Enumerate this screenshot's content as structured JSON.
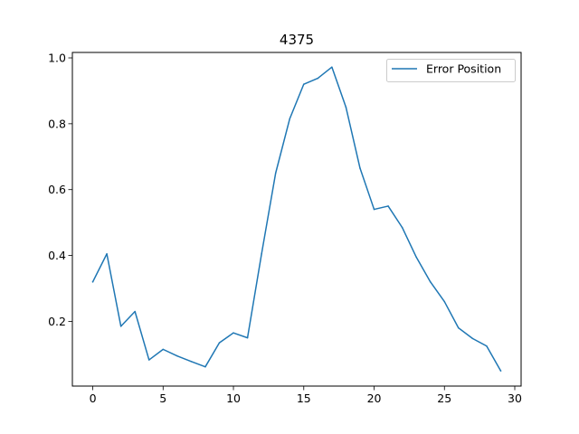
{
  "chart_data": {
    "type": "line",
    "title": "4375",
    "xlabel": "",
    "ylabel": "",
    "xlim": [
      -1.45,
      30.45
    ],
    "ylim": [
      0.0035,
      1.0165
    ],
    "x_ticks": [
      0,
      5,
      10,
      15,
      20,
      25,
      30
    ],
    "y_ticks": [
      0.2,
      0.4,
      0.6,
      0.8,
      1.0
    ],
    "x_tick_labels": [
      "0",
      "5",
      "10",
      "15",
      "20",
      "25",
      "30"
    ],
    "y_tick_labels": [
      "0.2",
      "0.4",
      "0.6",
      "0.8",
      "1.0"
    ],
    "grid": false,
    "legend_position": "top-right",
    "series": [
      {
        "name": "Error Position",
        "color": "#1f77b4",
        "x": [
          0,
          1,
          2,
          3,
          4,
          5,
          6,
          7,
          8,
          9,
          10,
          11,
          12,
          13,
          14,
          15,
          16,
          17,
          18,
          19,
          20,
          21,
          22,
          23,
          24,
          25,
          26,
          27,
          28,
          29
        ],
        "y": [
          0.32,
          0.405,
          0.185,
          0.23,
          0.083,
          0.115,
          0.095,
          0.078,
          0.062,
          0.135,
          0.165,
          0.15,
          0.405,
          0.65,
          0.815,
          0.92,
          0.938,
          0.972,
          0.85,
          0.665,
          0.54,
          0.55,
          0.485,
          0.395,
          0.32,
          0.26,
          0.18,
          0.148,
          0.125,
          0.05
        ]
      }
    ]
  }
}
